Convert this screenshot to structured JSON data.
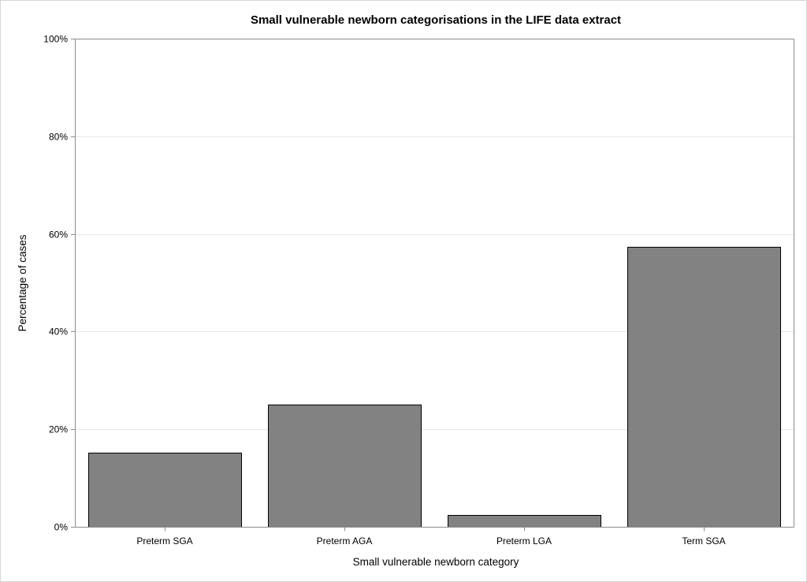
{
  "chart_data": {
    "type": "bar",
    "title": "Small vulnerable newborn categorisations in the LIFE data extract",
    "xlabel": "Small vulnerable newborn category",
    "ylabel": "Percentage of cases",
    "categories": [
      "Preterm SGA",
      "Preterm AGA",
      "Preterm LGA",
      "Term SGA"
    ],
    "values": [
      15.2,
      25.0,
      2.4,
      57.3
    ],
    "ylim": [
      0,
      100
    ],
    "yticks": [
      0,
      20,
      40,
      60,
      80,
      100
    ],
    "ytick_labels": [
      "0%",
      "20%",
      "40%",
      "60%",
      "80%",
      "100%"
    ],
    "grid": true,
    "colors": {
      "bar_fill": "#828282",
      "bar_stroke": "#000000",
      "grid": "#e6e6e6",
      "axis": "#8c8c8c"
    }
  }
}
